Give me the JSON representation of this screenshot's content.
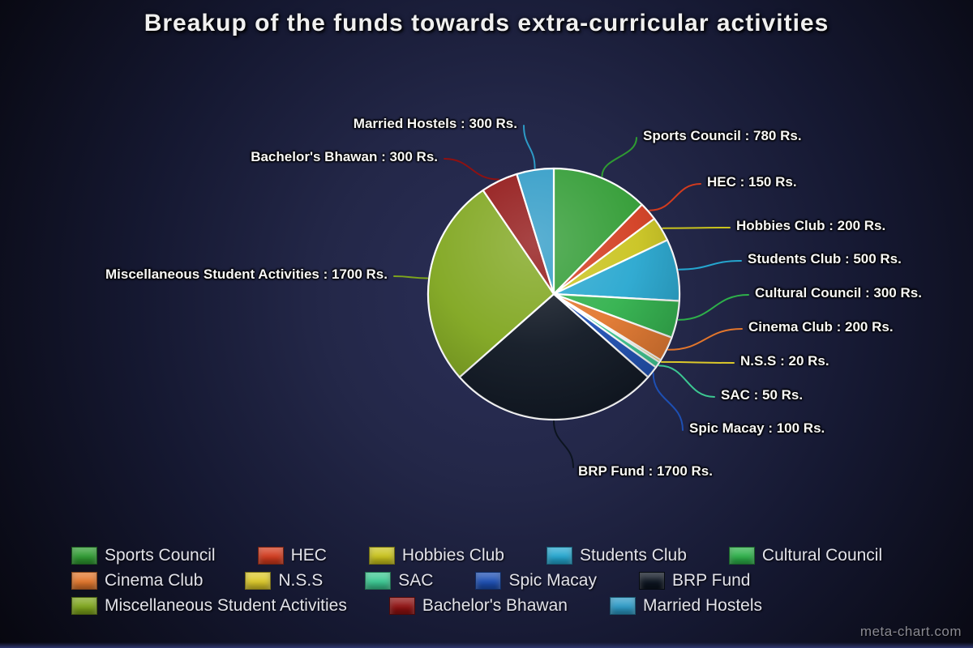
{
  "watermark": "meta-chart.com",
  "chart_data": {
    "type": "pie",
    "title": "Breakup of the funds towards extra-curricular activities",
    "unit": "Rs.",
    "total": 6300,
    "direction": "clockwise",
    "start_angle_deg": 0,
    "legend_position": "bottom",
    "slices": [
      {
        "name": "Sports Council",
        "value": 780,
        "color": "#2f9b32",
        "label": "Sports Council : 780 Rs."
      },
      {
        "name": "HEC",
        "value": 150,
        "color": "#d23b1e",
        "label": "HEC : 150 Rs."
      },
      {
        "name": "Hobbies Club",
        "value": 200,
        "color": "#c9c31d",
        "label": "Hobbies Club : 200 Rs."
      },
      {
        "name": "Students Club",
        "value": 500,
        "color": "#25a6cf",
        "label": "Students Club : 500 Rs."
      },
      {
        "name": "Cultural Council",
        "value": 300,
        "color": "#2eb04a",
        "label": "Cultural Council : 300 Rs."
      },
      {
        "name": "Cinema Club",
        "value": 200,
        "color": "#e2762c",
        "label": "Cinema Club : 200 Rs."
      },
      {
        "name": "N.S.S",
        "value": 20,
        "color": "#dbc82a",
        "label": "N.S.S : 20 Rs."
      },
      {
        "name": "SAC",
        "value": 50,
        "color": "#3cc892",
        "label": "SAC : 50 Rs."
      },
      {
        "name": "Spic Macay",
        "value": 100,
        "color": "#1d4fb3",
        "label": "Spic Macay : 100 Rs."
      },
      {
        "name": "BRP Fund",
        "value": 1700,
        "color": "#0c1420",
        "label": "BRP Fund : 1700 Rs."
      },
      {
        "name": "Miscellaneous Student Activities",
        "value": 1700,
        "color": "#7ea51c",
        "label": "Miscellaneous Student Activities : 1700 Rs."
      },
      {
        "name": "Bachelor's Bhawan",
        "value": 300,
        "color": "#8f1111",
        "label": "Bachelor's Bhawan : 300 Rs."
      },
      {
        "name": "Married Hostels",
        "value": 300,
        "color": "#2d9ac6",
        "label": "Married Hostels : 300 Rs."
      }
    ]
  }
}
